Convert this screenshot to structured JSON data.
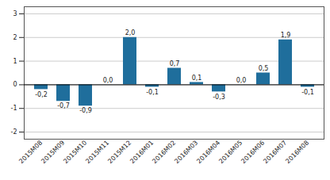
{
  "chart_data": {
    "type": "bar",
    "categories": [
      "2015M08",
      "2015M09",
      "2015M10",
      "2015M11",
      "2015M12",
      "2016M01",
      "2016M02",
      "2016M03",
      "2016M04",
      "2016M05",
      "2016M06",
      "2016M07",
      "2016M08"
    ],
    "values": [
      -0.2,
      -0.7,
      -0.9,
      0.0,
      2.0,
      -0.1,
      0.7,
      0.1,
      -0.3,
      0.0,
      0.5,
      1.9,
      -0.1
    ],
    "value_labels": [
      "-0,2",
      "-0,7",
      "-0,9",
      "0,0",
      "2,0",
      "-0,1",
      "0,7",
      "0,1",
      "-0,3",
      "0,0",
      "0,5",
      "1,9",
      "-0,1"
    ],
    "color": "#1f6e9c",
    "ylim": [
      -2.3,
      3.3
    ],
    "yticks": [
      -2,
      -1,
      0,
      1,
      2,
      3
    ],
    "grid": true,
    "data_labels": true
  }
}
